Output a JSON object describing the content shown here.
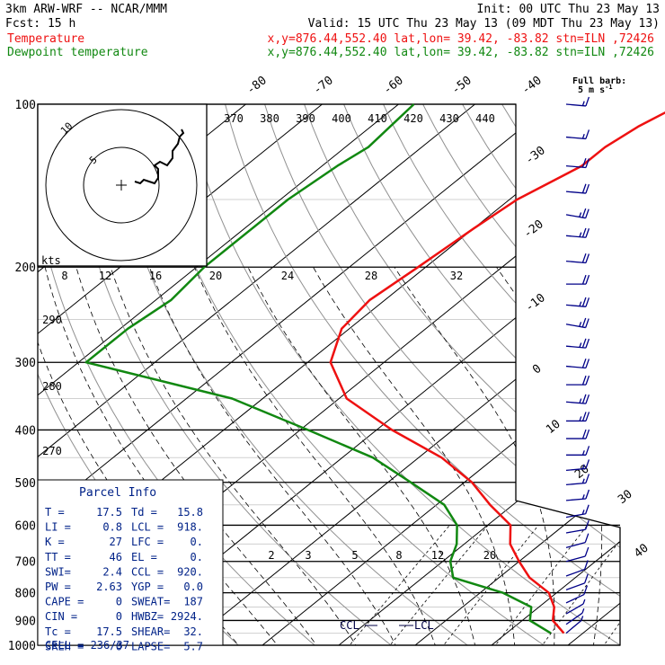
{
  "header": {
    "model": "3km ARW-WRF -- NCAR/MMM",
    "init": "Init: 00 UTC Thu 23 May 13",
    "fcst": "Fcst:   15 h",
    "valid": "Valid: 15 UTC Thu 23 May 13 (09 MDT Thu 23 May 13)",
    "temp_label": "Temperature",
    "temp_loc": "x,y=876.44,552.40   lat,lon= 39.42, -83.82  stn=ILN ,72426",
    "dew_label": "Dewpoint temperature",
    "dew_loc": "x,y=876.44,552.40   lat,lon= 39.42, -83.82  stn=ILN ,72426",
    "full_barb": "Full barb:",
    "full_barb_value": "5 m s",
    "full_barb_exp": "-1"
  },
  "colors": {
    "temperature": "#ee1111",
    "dewpoint": "#118811",
    "wind": "#000088",
    "table": "#002288",
    "grid": "#000000"
  },
  "chart_data": {
    "type": "line",
    "chart_kind": "skew-t log-p",
    "y_scale": "log",
    "pressure_ticks": [
      "100",
      "200",
      "300",
      "400",
      "500",
      "600",
      "700",
      "800",
      "900",
      "1000"
    ],
    "isotherm_labels": [
      "-80",
      "-70",
      "-60",
      "-50",
      "-40",
      "-30",
      "-20",
      "-10",
      "0",
      "10",
      "20",
      "30",
      "40"
    ],
    "theta_labels": [
      "370",
      "380",
      "390",
      "400",
      "410",
      "420",
      "430",
      "440"
    ],
    "theta_side_labels": [
      "290",
      "280",
      "270"
    ],
    "mixing_ratio_labels": [
      "2",
      "3",
      "5",
      "8",
      "12",
      "20"
    ],
    "hodo_speed_labels": [
      "8",
      "12",
      "16",
      "20",
      "24",
      "28",
      "32"
    ],
    "hodo_units": "kts",
    "hodo_rings": [
      "5",
      "10"
    ],
    "ccl_label": "CCL",
    "lcl_label": "LCL",
    "series": [
      {
        "name": "Temperature",
        "points": [
          [
            100,
            -53
          ],
          [
            110,
            -55
          ],
          [
            120,
            -56
          ],
          [
            130,
            -56
          ],
          [
            150,
            -59
          ],
          [
            170,
            -60
          ],
          [
            200,
            -61
          ],
          [
            230,
            -62
          ],
          [
            260,
            -61
          ],
          [
            300,
            -57
          ],
          [
            350,
            -49
          ],
          [
            400,
            -38
          ],
          [
            450,
            -27
          ],
          [
            500,
            -19
          ],
          [
            550,
            -13
          ],
          [
            600,
            -7
          ],
          [
            650,
            -4
          ],
          [
            700,
            0
          ],
          [
            750,
            4
          ],
          [
            800,
            9
          ],
          [
            850,
            12
          ],
          [
            900,
            14
          ],
          [
            950,
            17.5
          ]
        ]
      },
      {
        "name": "Dewpoint temperature",
        "points": [
          [
            100,
            -88
          ],
          [
            120,
            -87
          ],
          [
            130,
            -88
          ],
          [
            150,
            -89
          ],
          [
            170,
            -89
          ],
          [
            200,
            -89
          ],
          [
            230,
            -88
          ],
          [
            260,
            -89
          ],
          [
            300,
            -89
          ],
          [
            350,
            -64
          ],
          [
            400,
            -49
          ],
          [
            450,
            -36
          ],
          [
            500,
            -27
          ],
          [
            550,
            -19
          ],
          [
            600,
            -14
          ],
          [
            650,
            -11
          ],
          [
            700,
            -9
          ],
          [
            750,
            -6
          ],
          [
            800,
            3
          ],
          [
            850,
            9
          ],
          [
            900,
            11
          ],
          [
            950,
            15.8
          ]
        ]
      }
    ],
    "wind_barbs": [
      {
        "p": 100,
        "speed": 15,
        "dir": 275
      },
      {
        "p": 115,
        "speed": 15,
        "dir": 275
      },
      {
        "p": 130,
        "speed": 20,
        "dir": 275
      },
      {
        "p": 145,
        "speed": 20,
        "dir": 275
      },
      {
        "p": 160,
        "speed": 25,
        "dir": 280
      },
      {
        "p": 175,
        "speed": 25,
        "dir": 275
      },
      {
        "p": 195,
        "speed": 20,
        "dir": 275
      },
      {
        "p": 215,
        "speed": 20,
        "dir": 270
      },
      {
        "p": 235,
        "speed": 25,
        "dir": 275
      },
      {
        "p": 255,
        "speed": 25,
        "dir": 280
      },
      {
        "p": 280,
        "speed": 25,
        "dir": 275
      },
      {
        "p": 305,
        "speed": 20,
        "dir": 275
      },
      {
        "p": 330,
        "speed": 20,
        "dir": 270
      },
      {
        "p": 355,
        "speed": 25,
        "dir": 275
      },
      {
        "p": 385,
        "speed": 25,
        "dir": 270
      },
      {
        "p": 415,
        "speed": 20,
        "dir": 270
      },
      {
        "p": 445,
        "speed": 15,
        "dir": 270
      },
      {
        "p": 475,
        "speed": 15,
        "dir": 265
      },
      {
        "p": 505,
        "speed": 15,
        "dir": 265
      },
      {
        "p": 540,
        "speed": 15,
        "dir": 265
      },
      {
        "p": 580,
        "speed": 15,
        "dir": 260
      },
      {
        "p": 620,
        "speed": 10,
        "dir": 260
      },
      {
        "p": 660,
        "speed": 10,
        "dir": 255
      },
      {
        "p": 700,
        "speed": 10,
        "dir": 255
      },
      {
        "p": 745,
        "speed": 10,
        "dir": 250
      },
      {
        "p": 790,
        "speed": 10,
        "dir": 250
      },
      {
        "p": 835,
        "speed": 10,
        "dir": 245
      },
      {
        "p": 875,
        "speed": 5,
        "dir": 240
      },
      {
        "p": 915,
        "speed": 5,
        "dir": 235
      },
      {
        "p": 950,
        "speed": 5,
        "dir": 230
      }
    ]
  },
  "parcel_info": {
    "title": "Parcel Info",
    "rows": [
      [
        "T  =",
        "17.5",
        "Td =",
        "15.8"
      ],
      [
        "LI =",
        "0.8",
        "LCL =",
        "918."
      ],
      [
        "K  =",
        "27",
        "LFC =",
        "0."
      ],
      [
        "TT =",
        "46",
        "EL  =",
        "0."
      ],
      [
        "SWI=",
        "2.4",
        "CCL =",
        "920."
      ],
      [
        "PW =",
        "2.63",
        "YGP =",
        "0.0"
      ],
      [
        "CAPE =",
        "0",
        "SWEAT=",
        "187"
      ],
      [
        "CIN  =",
        "0",
        "HWBZ=",
        "2924."
      ],
      [
        "Tc  =",
        "17.5",
        "SHEAR=",
        "32."
      ],
      [
        "SREH =",
        "0",
        "LAPSE=",
        "5.7"
      ]
    ],
    "cell": "CELL = 236/37"
  }
}
